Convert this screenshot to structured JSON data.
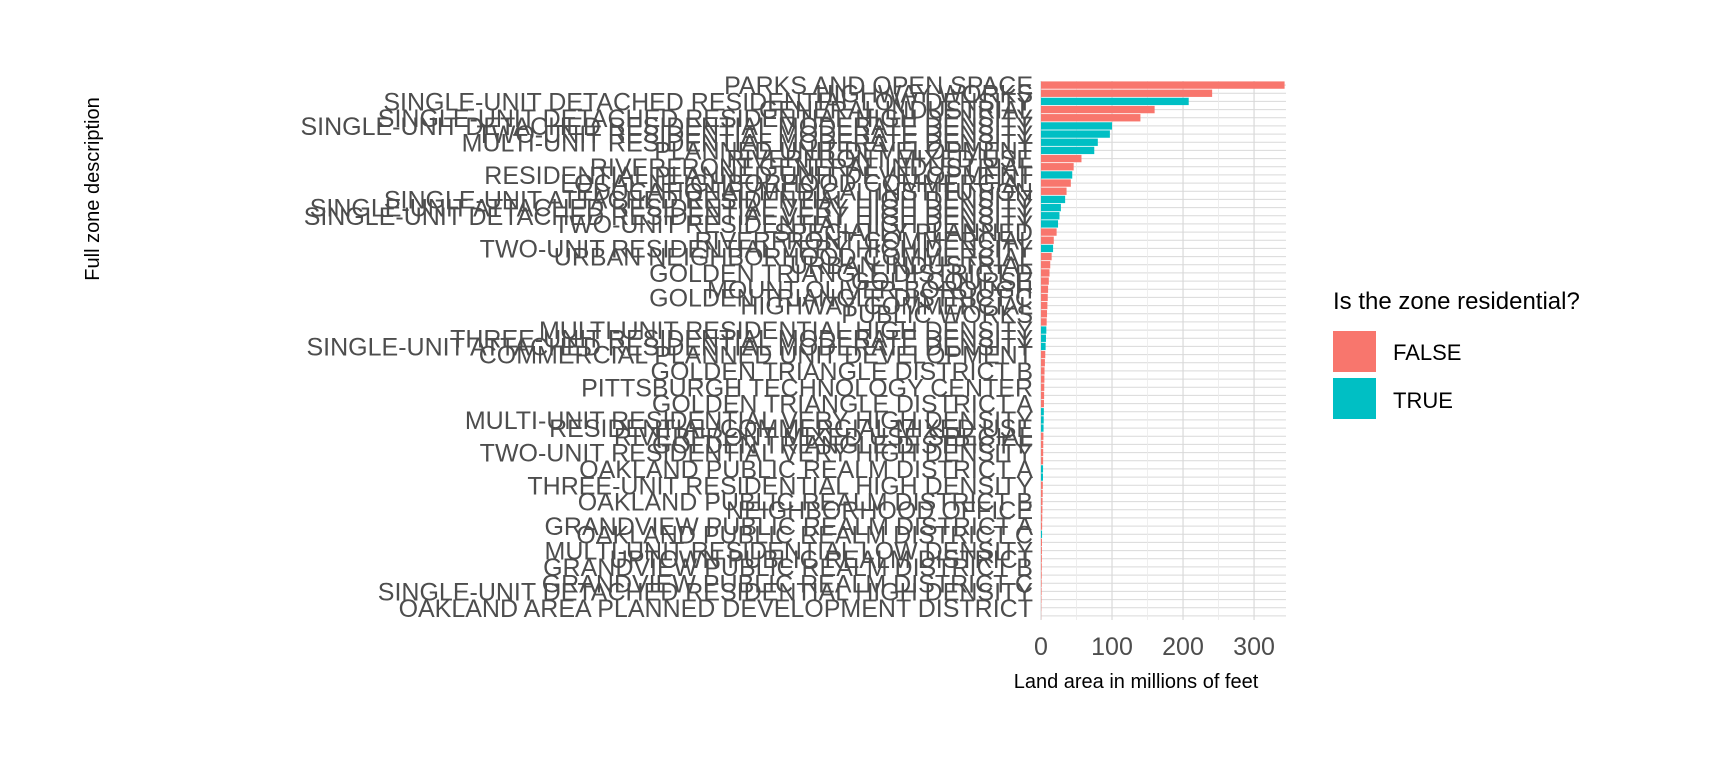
{
  "chart_data": {
    "type": "bar",
    "orientation": "horizontal",
    "xlabel": "Land area in millions of feet",
    "ylabel": "Full zone description",
    "xlim": [
      0,
      345
    ],
    "xticks": [
      0,
      100,
      200,
      300
    ],
    "grid": true,
    "legend": {
      "title": "Is the zone residential?",
      "position": "right",
      "entries": [
        {
          "label": "FALSE",
          "color": "#F8766D"
        },
        {
          "label": "TRUE",
          "color": "#00BFC4"
        }
      ]
    },
    "bars": [
      {
        "value": 343,
        "residential": false
      },
      {
        "value": 241,
        "residential": false
      },
      {
        "value": 208,
        "residential": true
      },
      {
        "value": 160,
        "residential": false
      },
      {
        "value": 140,
        "residential": false
      },
      {
        "value": 100,
        "residential": true
      },
      {
        "value": 97,
        "residential": true
      },
      {
        "value": 80,
        "residential": true
      },
      {
        "value": 75,
        "residential": true
      },
      {
        "value": 57,
        "residential": false
      },
      {
        "value": 46,
        "residential": false
      },
      {
        "value": 44,
        "residential": true
      },
      {
        "value": 42,
        "residential": false
      },
      {
        "value": 36,
        "residential": false
      },
      {
        "value": 34,
        "residential": true
      },
      {
        "value": 28,
        "residential": true
      },
      {
        "value": 26,
        "residential": true
      },
      {
        "value": 24,
        "residential": true
      },
      {
        "value": 22,
        "residential": false
      },
      {
        "value": 18,
        "residential": false
      },
      {
        "value": 17,
        "residential": true
      },
      {
        "value": 15,
        "residential": false
      },
      {
        "value": 13,
        "residential": false
      },
      {
        "value": 12,
        "residential": false
      },
      {
        "value": 11,
        "residential": false
      },
      {
        "value": 10,
        "residential": false
      },
      {
        "value": 9.5,
        "residential": false
      },
      {
        "value": 9,
        "residential": false
      },
      {
        "value": 8.5,
        "residential": false
      },
      {
        "value": 8,
        "residential": false
      },
      {
        "value": 7.5,
        "residential": true
      },
      {
        "value": 7,
        "residential": true
      },
      {
        "value": 6.5,
        "residential": true
      },
      {
        "value": 6,
        "residential": false
      },
      {
        "value": 5.5,
        "residential": false
      },
      {
        "value": 5,
        "residential": false
      },
      {
        "value": 4.8,
        "residential": false
      },
      {
        "value": 4.6,
        "residential": false
      },
      {
        "value": 4.4,
        "residential": false
      },
      {
        "value": 4.2,
        "residential": false
      },
      {
        "value": 4,
        "residential": true
      },
      {
        "value": 3.8,
        "residential": true
      },
      {
        "value": 3.6,
        "residential": true
      },
      {
        "value": 3.4,
        "residential": false
      },
      {
        "value": 3.2,
        "residential": false
      },
      {
        "value": 3.1,
        "residential": false
      },
      {
        "value": 3,
        "residential": false
      },
      {
        "value": 2.9,
        "residential": true
      },
      {
        "value": 2.8,
        "residential": true
      },
      {
        "value": 2.6,
        "residential": false
      },
      {
        "value": 2.4,
        "residential": false
      },
      {
        "value": 2.2,
        "residential": false
      },
      {
        "value": 2,
        "residential": false
      },
      {
        "value": 1.8,
        "residential": false
      },
      {
        "value": 1.6,
        "residential": false
      },
      {
        "value": 1.5,
        "residential": true
      },
      {
        "value": 1.4,
        "residential": false
      },
      {
        "value": 1.3,
        "residential": false
      },
      {
        "value": 1.2,
        "residential": false
      },
      {
        "value": 1.1,
        "residential": false
      },
      {
        "value": 1.0,
        "residential": false
      },
      {
        "value": 0.9,
        "residential": false
      },
      {
        "value": 0.8,
        "residential": false
      },
      {
        "value": 0.6,
        "residential": false
      },
      {
        "value": 0.4,
        "residential": false
      },
      {
        "value": 0.2,
        "residential": false
      }
    ],
    "category_labels": [
      "PARKS AND OPEN SPACE",
      "HIGHWAY WORKS",
      "SINGLE-UNIT DETACHED RESIDENTIAL LOW DENSITY",
      "GENERAL INDUSTRIAL",
      "SINGLE-UNIT DETACHED RESIDENTIAL HIGH DENSITY",
      "SINGLE-UNIT DETACHED RESIDENTIAL MODERATE DENSITY",
      "TWO-UNIT RESIDENTIAL MODERATE DENSITY",
      "MULTI-UNIT RESIDENTIAL MODERATE DENSITY",
      "PLANNED UNIT DEVELOPMENT",
      "RIVERFRONT MIXED USE",
      "RIVERFRONT GENERAL INDUSTRIAL",
      "RESIDENTIAL PLANNED UNIT DEVELOPMENT",
      "LOCAL NEIGHBORHOOD COMMERCIAL",
      "EDUCATIONAL/MEDICAL INSTITUTION",
      "SINGLE-UNIT ATTACHED RESIDENTIAL HIGH DENSITY",
      "SINGLE-UNIT ATTACHED RESIDENTIAL VERY HIGH DENSITY",
      "SINGLE-UNIT DETACHED RESIDENTIAL VERY HIGH DENSITY",
      "TWO-UNIT RESIDENTIAL HIGH DENSITY",
      "SPECIALLY PLANNED",
      "RIVERFRONT COMMERCIAL",
      "TWO-UNIT RESIDENTIAL VERY HIGH DENSITY",
      "URBAN NEIGHBORHOOD COMMERCIAL",
      "URBAN INDUSTRIAL",
      "GOLDEN TRIANGLE DISTRICT D",
      "GOLF COURSE",
      "MOUNT OLIVER BOROUGH",
      "GOLDEN TRIANGLE DISTRICT C",
      "HIGHWAY COMMERCIAL",
      "PUBLIC WORKS",
      "MULTI-UNIT RESIDENTIAL HIGH DENSITY",
      "THREE-UNIT RESIDENTIAL MODERATE DENSITY",
      "SINGLE-UNIT ATTACHED RESIDENTIAL MODERATE DENSITY",
      "COMMERCIAL PLANNED UNIT DEVELOPMENT",
      "GOLDEN TRIANGLE DISTRICT B",
      "PITTSBURGH TECHNOLOGY CENTER",
      "GOLDEN TRIANGLE DISTRICT A",
      "MULTI-UNIT RESIDENTIAL VERY HIGH DENSITY",
      "RESIDENTIAL/COMMERCIAL MIXED USE",
      "RIVERFRONT MIXED USE SPECIAL",
      "GOLDEN TRIANGLE DISTRICT F",
      "TWO-UNIT RESIDENTIAL VERY HIGH DENSITY",
      "OAKLAND PUBLIC REALM DISTRICT A",
      "THREE-UNIT RESIDENTIAL HIGH DENSITY",
      "OAKLAND PUBLIC REALM DISTRICT B",
      "NEIGHBORHOOD OFFICE",
      "GRANDVIEW PUBLIC REALM DISTRICT A",
      "OAKLAND PUBLIC REALM DISTRICT C",
      "MULTI-UNIT RESIDENTIAL LOW DENSITY",
      "UPTOWN PUBLIC REALM DISTRICT",
      "GRANDVIEW PUBLIC REALM DISTRICT B",
      "GRANDVIEW PUBLIC REALM DISTRICT C",
      "SINGLE-UNIT DETACHED RESIDENTIAL HIGH DENSITY",
      "OAKLAND AREA PLANNED DEVELOPMENT DISTRICT"
    ],
    "label_rows": [
      0,
      1,
      2,
      3,
      4,
      5,
      6,
      7,
      8,
      9,
      10,
      11,
      12,
      13,
      14,
      15,
      16,
      17,
      18,
      19,
      20,
      21,
      22,
      23,
      24,
      25,
      26,
      27,
      28,
      30,
      31,
      32,
      33,
      35,
      37,
      39,
      41,
      42,
      43,
      44,
      45,
      47,
      49,
      51,
      52,
      54,
      55,
      57,
      58,
      59,
      61,
      62,
      64
    ]
  }
}
